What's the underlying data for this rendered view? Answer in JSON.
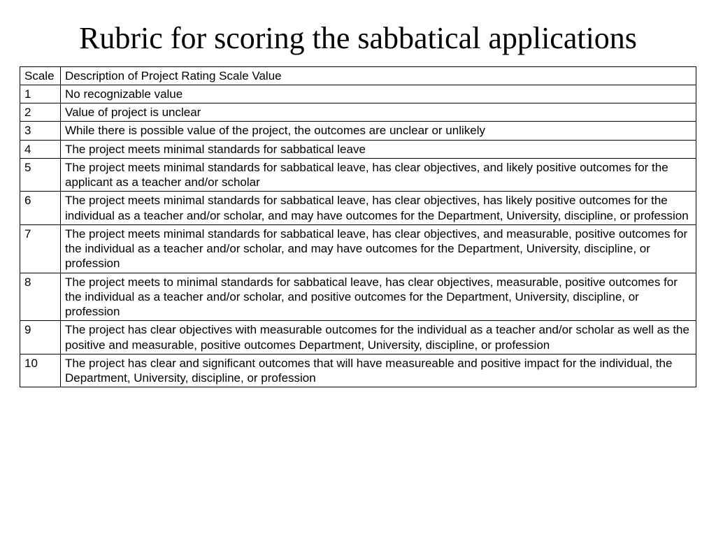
{
  "title": "Rubric for scoring the sabbatical applications",
  "table": {
    "columns": [
      "Scale",
      "Description of Project Rating Scale Value"
    ],
    "rows": [
      [
        "1",
        "No recognizable value"
      ],
      [
        "2",
        "Value of project is unclear"
      ],
      [
        "3",
        "While there is possible value of the project, the outcomes are unclear or unlikely"
      ],
      [
        "4",
        "The project meets minimal standards for sabbatical leave"
      ],
      [
        "5",
        "The project meets minimal standards for sabbatical leave, has clear objectives, and likely positive outcomes for the applicant as a teacher and/or scholar"
      ],
      [
        "6",
        "The project meets minimal standards for sabbatical leave, has clear objectives, has likely positive outcomes for the individual as a teacher and/or scholar, and may have outcomes for the Department, University, discipline, or profession"
      ],
      [
        "7",
        "The project meets minimal standards for sabbatical leave, has clear objectives, and measurable, positive outcomes for the individual as a teacher and/or scholar, and may have outcomes for the Department, University, discipline, or profession"
      ],
      [
        "8",
        "The project meets to minimal standards for sabbatical leave, has clear objectives, measurable, positive outcomes for the individual as a teacher and/or scholar, and positive outcomes for the Department, University, discipline, or profession"
      ],
      [
        "9",
        "The project has clear objectives with measurable outcomes for the individual as a teacher and/or scholar as well as the positive and measurable, positive outcomes Department, University, discipline, or profession"
      ],
      [
        "10",
        "The project has clear and significant outcomes that will have measureable and positive impact for the individual, the Department, University, discipline, or profession"
      ]
    ]
  }
}
